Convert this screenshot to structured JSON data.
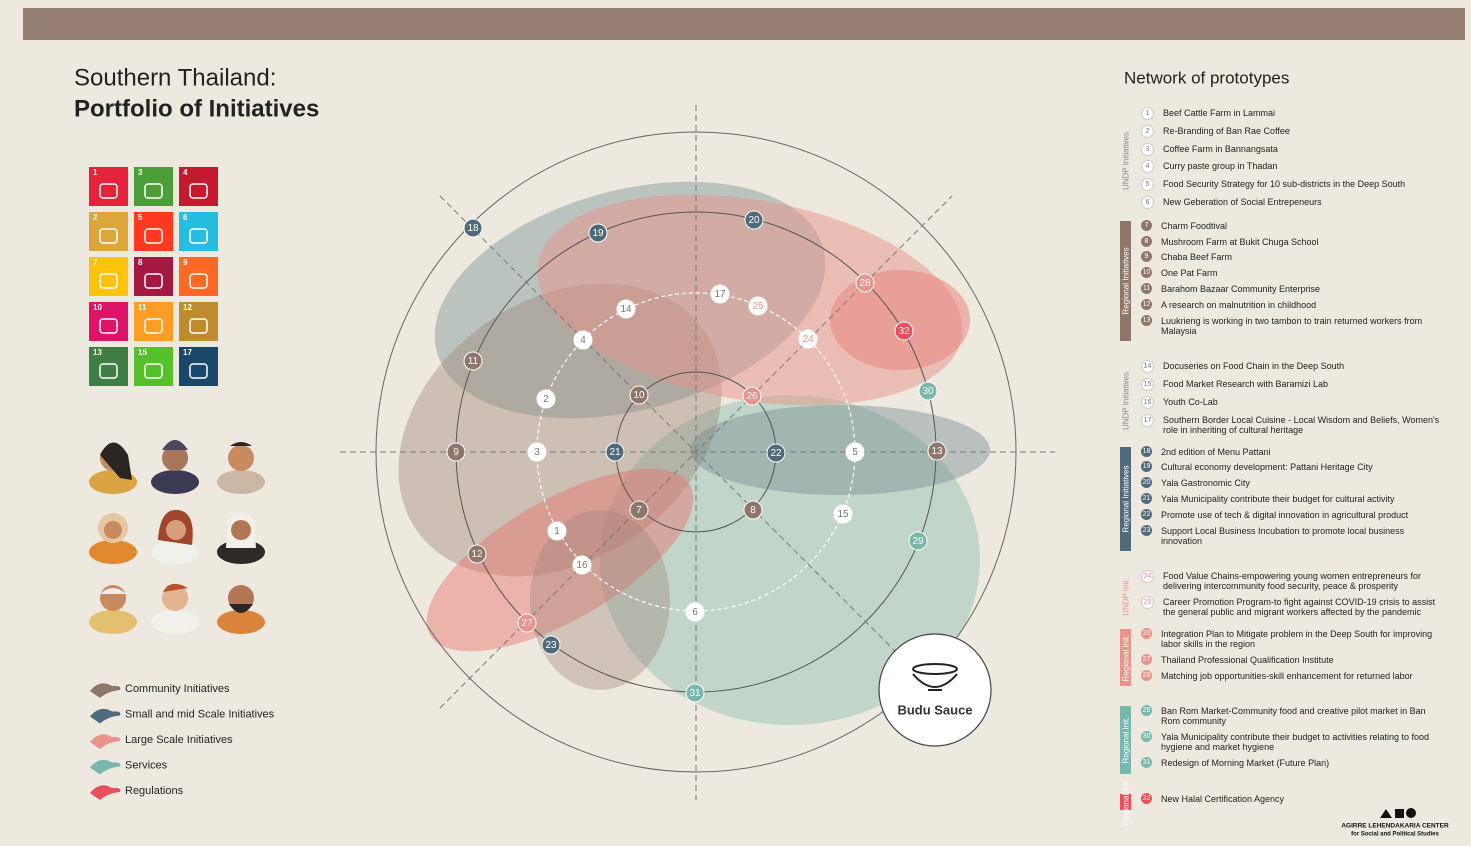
{
  "header": {
    "title_line1": "Southern Thailand:",
    "title_line2": "Portfolio of Initiatives"
  },
  "sdgs": [
    "1",
    "3",
    "4",
    "2",
    "5",
    "6",
    "7",
    "8",
    "9",
    "10",
    "11",
    "12",
    "13",
    "15",
    "17"
  ],
  "legend": [
    "Community Initiatives",
    "Small and mid Scale Initiatives",
    "Large Scale Initiatives",
    "Services",
    "Regulations"
  ],
  "budu": "Budu Sauce",
  "network": {
    "title": "Network of prototypes",
    "groups": [
      {
        "label": "UNDP Initiatives",
        "color": "#ffffff",
        "items": [
          {
            "number": "1",
            "text": "Beef Cattle Farm in Lammai"
          },
          {
            "number": "2",
            "text": "Re-Branding of Ban Rae Coffee"
          },
          {
            "number": "3",
            "text": "Coffee Farm in Bannangsata"
          },
          {
            "number": "4",
            "text": "Curry paste group in Thadan"
          },
          {
            "number": "5",
            "text": "Food Security Strategy for 10 sub-districts in the Deep South"
          },
          {
            "number": "6",
            "text": "New Geberation of Social Entrepeneurs"
          }
        ]
      },
      {
        "label": "Regional Initiatives",
        "color": "#8f766b",
        "items": [
          {
            "number": "7",
            "text": "Charm Foodtival"
          },
          {
            "number": "8",
            "text": "Mushroom Farm at Bukit Chuga School"
          },
          {
            "number": "9",
            "text": "Chaba Beef Farm"
          },
          {
            "number": "10",
            "text": "One Pat Farm"
          },
          {
            "number": "11",
            "text": "Barahom Bazaar Community Enterprise"
          },
          {
            "number": "12",
            "text": "A research on malnutrition in childhood"
          },
          {
            "number": "13",
            "text": "Luukrieng is working in two tambon to train returned workers from Malaysia"
          }
        ]
      },
      {
        "label": "UNDP Initiatives",
        "color": "#ffffff",
        "items": [
          {
            "number": "14",
            "text": "Docuseries on Food Chain in the Deep South"
          },
          {
            "number": "15",
            "text": "Food Market Research with Baramizi Lab"
          },
          {
            "number": "16",
            "text": "Youth Co-Lab"
          },
          {
            "number": "17",
            "text": "Southern Border Local Cuisine - Local Wisdom and Beliefs, Women's role in inheriting of cultural heritage"
          }
        ]
      },
      {
        "label": "Regional Initiatives",
        "color": "#4f6b7a",
        "items": [
          {
            "number": "18",
            "text": "2nd edition of Menu Pattani"
          },
          {
            "number": "19",
            "text": "Cultural economy development: Pattani Heritage City"
          },
          {
            "number": "20",
            "text": "Yala Gastronomic City"
          },
          {
            "number": "21",
            "text": "Yala Municipality contribute their budget for cultural activity"
          },
          {
            "number": "22",
            "text": "Promote use of tech & digital innovation in agricultural product"
          },
          {
            "number": "23",
            "text": "Support Local Business Incubation to promote local business innovation"
          }
        ]
      },
      {
        "label": "UNDP Init.",
        "color": "#fbe4df",
        "items": [
          {
            "number": "24",
            "text": "Food Value Chains-empowering young women entrepreneurs for delivering intercommunity food security, peace & prosperity"
          },
          {
            "number": "25",
            "text": "Career Promotion Program-to fight against COVID-19 crisis to assist the general public and migrant workers affected by the pandemic"
          }
        ]
      },
      {
        "label": "Regional Init.",
        "color": "#e8948a",
        "items": [
          {
            "number": "26",
            "text": "Integration Plan to Mitigate problem in the Deep South for improving labor skills in the region"
          },
          {
            "number": "27",
            "text": "Thailand Professional Qualification Institute"
          },
          {
            "number": "28",
            "text": "Matching job opportunities-skill enhancement for returned labor"
          }
        ]
      },
      {
        "label": "Regional Init.",
        "color": "#78b8ac",
        "items": [
          {
            "number": "29",
            "text": "Ban Rom Market-Community food and creative pilot market in Ban Rom community"
          },
          {
            "number": "30",
            "text": "Yala Municipality contribute their budget to activities relating to food hygiene and market hygiene"
          },
          {
            "number": "31",
            "text": "Redesign of Morning Market (Future Plan)"
          }
        ]
      },
      {
        "label": "Regional Init.",
        "color": "#e8505b",
        "items": [
          {
            "number": "32",
            "text": "New Halal Certification Agency"
          }
        ]
      }
    ]
  },
  "footer": {
    "org": "AGIRRE LEHENDAKARIA CENTER",
    "sub": "for Social and Political Studies"
  }
}
